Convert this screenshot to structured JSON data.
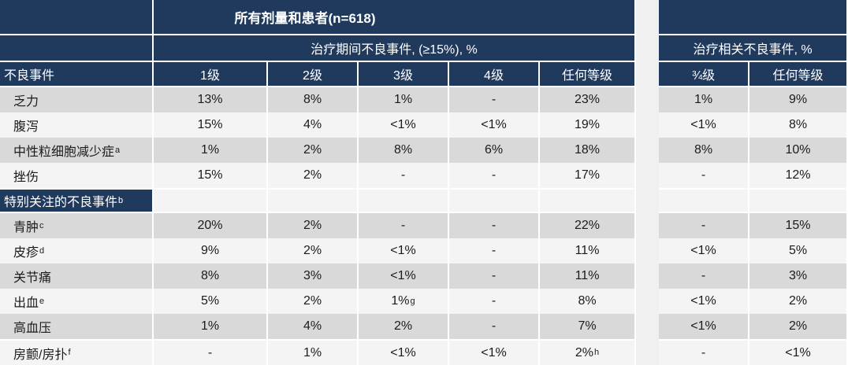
{
  "table": {
    "title": "所有剂量和患者(n=618)",
    "teae_group_header": "治疗期间不良事件, (≥15%), %",
    "trae_group_header": "治疗相关不良事件, %",
    "row_header": "不良事件",
    "grade_columns": [
      "1级",
      "2级",
      "3级",
      "4级",
      "任何等级"
    ],
    "trae_columns": [
      "¾级",
      "任何等级"
    ],
    "section_header": {
      "label": "特别关注的不良事件",
      "sup": "b"
    },
    "rows": [
      {
        "label": "乏力",
        "cells": [
          "13%",
          "8%",
          "1%",
          "-",
          "23%",
          "1%",
          "9%"
        ]
      },
      {
        "label": "腹泻",
        "cells": [
          "15%",
          "4%",
          "<1%",
          "<1%",
          "19%",
          "<1%",
          "8%"
        ]
      },
      {
        "label": "中性粒细胞减少症",
        "sup": "a",
        "cells": [
          "1%",
          "2%",
          "8%",
          "6%",
          "18%",
          "8%",
          "10%"
        ]
      },
      {
        "label": "挫伤",
        "cells": [
          "15%",
          "2%",
          "-",
          "-",
          "17%",
          "-",
          "12%"
        ]
      },
      {
        "label": "青肿",
        "sup": "c",
        "cells": [
          "20%",
          "2%",
          "-",
          "-",
          "22%",
          "-",
          "15%"
        ]
      },
      {
        "label": "皮疹",
        "sup": "d",
        "cells": [
          "9%",
          "2%",
          "<1%",
          "-",
          "11%",
          "<1%",
          "5%"
        ]
      },
      {
        "label": "关节痛",
        "cells": [
          "8%",
          "3%",
          "<1%",
          "-",
          "11%",
          "-",
          "3%"
        ]
      },
      {
        "label": "出血",
        "sup": "e",
        "cells": [
          "5%",
          "2%",
          "1%",
          "-",
          "8%",
          "<1%",
          "2%"
        ],
        "cell_sup": "g"
      },
      {
        "label": "高血压",
        "cells": [
          "1%",
          "4%",
          "2%",
          "-",
          "7%",
          "<1%",
          "2%"
        ]
      },
      {
        "label": "房颤/房扑",
        "sup": "f",
        "cells": [
          "-",
          "1%",
          "<1%",
          "<1%",
          "2%",
          "-",
          "<1%"
        ],
        "cell_sup": "h"
      }
    ],
    "colors": {
      "header_bg": "#203a5e",
      "row_alt_bg": "#d9d9d9",
      "row_bg": "#f4f4f4",
      "grid": "#ffffff",
      "header_text": "#ffffff",
      "body_text": "#1b1b1b"
    }
  }
}
